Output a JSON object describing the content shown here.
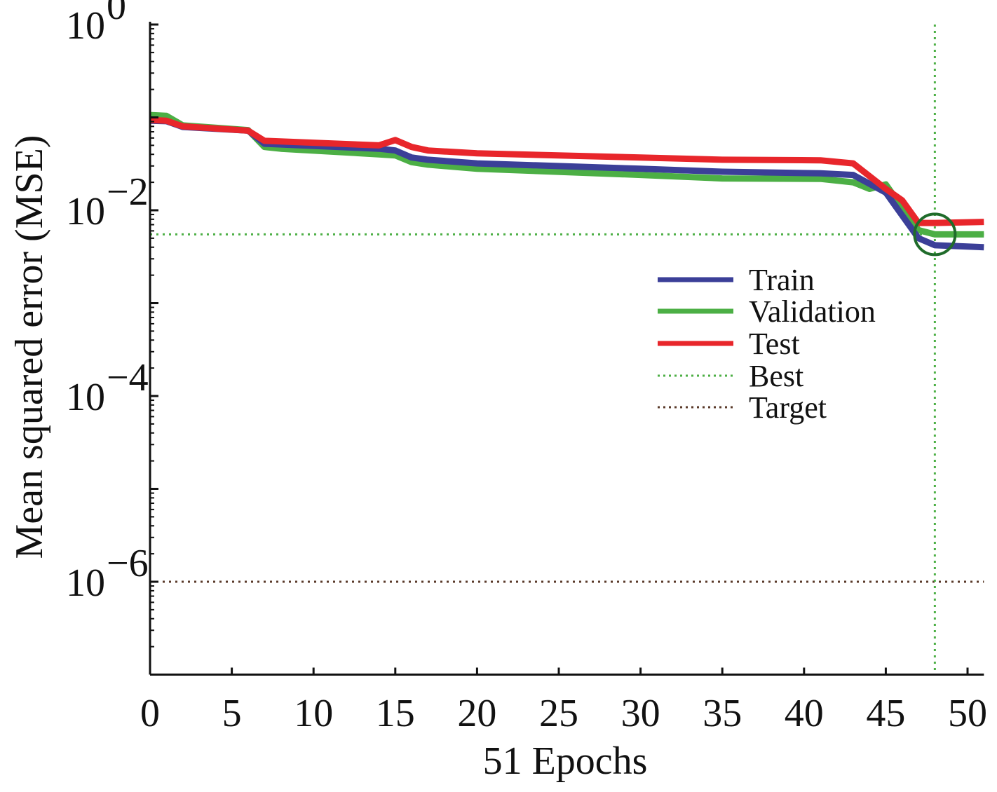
{
  "chart_data": {
    "type": "line",
    "title": "",
    "xlabel": "51 Epochs",
    "ylabel": "Mean squared error (MSE)",
    "xlim": [
      0,
      51
    ],
    "ylim": [
      1e-07,
      1
    ],
    "yscale": "log",
    "grid": false,
    "x_ticks": [
      0,
      5,
      10,
      15,
      20,
      25,
      30,
      35,
      40,
      45,
      50
    ],
    "y_ticks": [
      {
        "base": "10",
        "exp": "0",
        "value": 1
      },
      {
        "base": "10",
        "exp": "−2",
        "value": 0.01
      },
      {
        "base": "10",
        "exp": "−4",
        "value": 0.0001
      },
      {
        "base": "10",
        "exp": "−6",
        "value": 1e-06
      }
    ],
    "legend_position": "right-center",
    "series": [
      {
        "name": "Train",
        "color": "#3b3f98",
        "style": "solid",
        "points": [
          [
            0,
            0.092
          ],
          [
            1,
            0.091
          ],
          [
            2,
            0.079
          ],
          [
            6,
            0.072
          ],
          [
            7,
            0.052
          ],
          [
            14,
            0.046
          ],
          [
            15,
            0.044
          ],
          [
            16,
            0.037
          ],
          [
            17,
            0.035
          ],
          [
            20,
            0.032
          ],
          [
            30,
            0.028
          ],
          [
            35,
            0.026
          ],
          [
            41,
            0.025
          ],
          [
            43,
            0.024
          ],
          [
            45,
            0.0155
          ],
          [
            47,
            0.005
          ],
          [
            48,
            0.0042
          ],
          [
            51,
            0.004
          ]
        ]
      },
      {
        "name": "Validation",
        "color": "#4caf45",
        "style": "solid",
        "points": [
          [
            0,
            0.106
          ],
          [
            1,
            0.104
          ],
          [
            2,
            0.082
          ],
          [
            6,
            0.073
          ],
          [
            7,
            0.048
          ],
          [
            8,
            0.046
          ],
          [
            14,
            0.04
          ],
          [
            15,
            0.039
          ],
          [
            16,
            0.033
          ],
          [
            17,
            0.031
          ],
          [
            20,
            0.028
          ],
          [
            30,
            0.024
          ],
          [
            35,
            0.022
          ],
          [
            41,
            0.0218
          ],
          [
            43,
            0.02
          ],
          [
            44,
            0.017
          ],
          [
            45,
            0.019
          ],
          [
            47,
            0.0061
          ],
          [
            48,
            0.0055
          ],
          [
            51,
            0.0055
          ]
        ]
      },
      {
        "name": "Test",
        "color": "#e8262b",
        "style": "solid",
        "points": [
          [
            0,
            0.094
          ],
          [
            1,
            0.092
          ],
          [
            2,
            0.08
          ],
          [
            6,
            0.072
          ],
          [
            7,
            0.056
          ],
          [
            14,
            0.05
          ],
          [
            15,
            0.057
          ],
          [
            16,
            0.048
          ],
          [
            17,
            0.044
          ],
          [
            20,
            0.041
          ],
          [
            30,
            0.037
          ],
          [
            35,
            0.035
          ],
          [
            41,
            0.0345
          ],
          [
            43,
            0.032
          ],
          [
            45,
            0.017
          ],
          [
            46,
            0.0128
          ],
          [
            47,
            0.0073
          ],
          [
            48,
            0.0073
          ],
          [
            51,
            0.0075
          ]
        ]
      }
    ],
    "best": {
      "name": "Best",
      "epoch": 48,
      "value": 0.0055,
      "color": "#4caf45"
    },
    "target": {
      "name": "Target",
      "value": 1e-06,
      "color": "#5a3a2a"
    }
  }
}
